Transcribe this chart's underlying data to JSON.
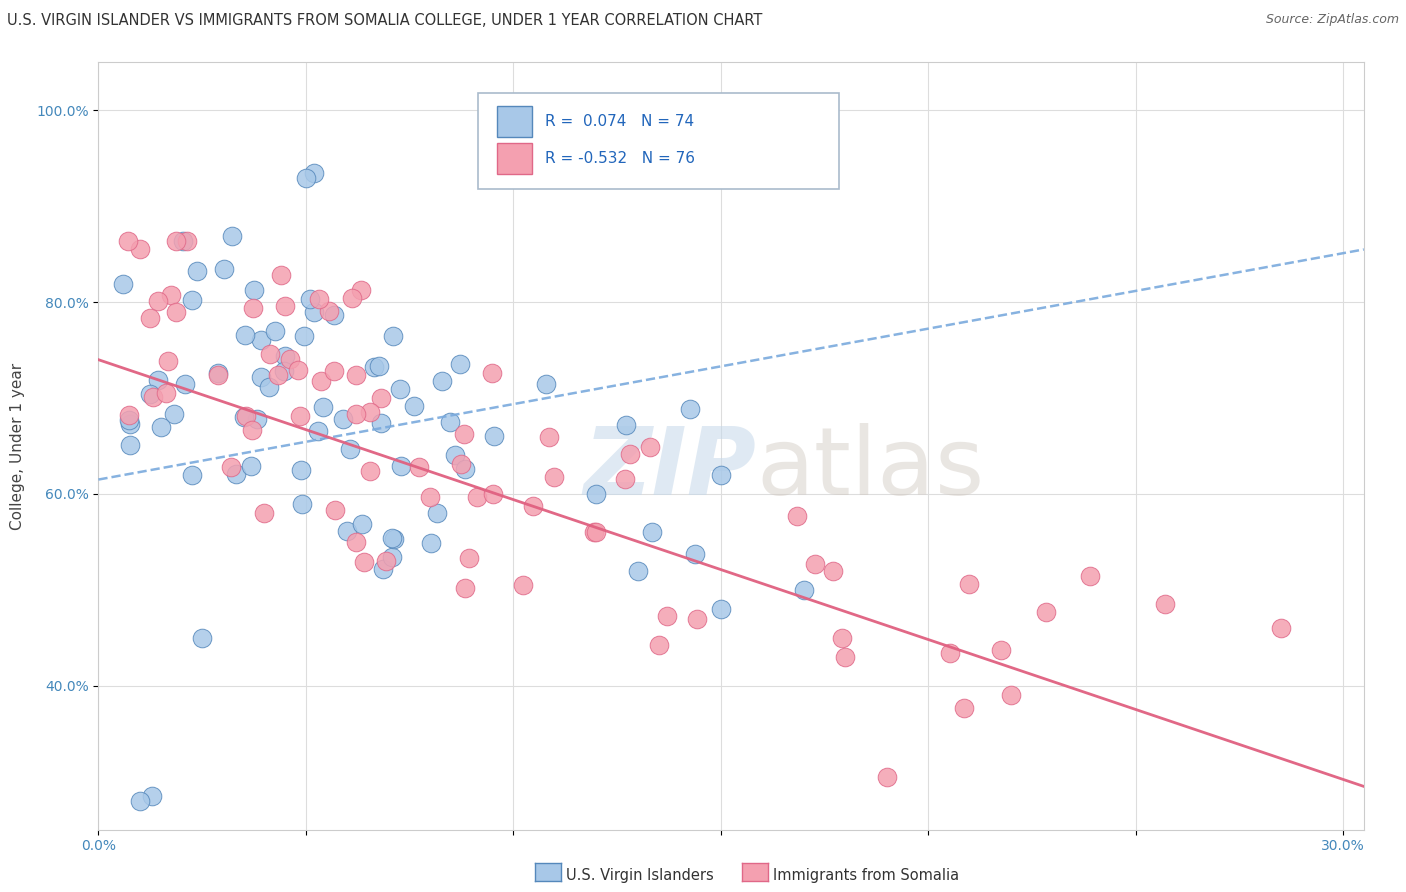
{
  "title": "U.S. VIRGIN ISLANDER VS IMMIGRANTS FROM SOMALIA COLLEGE, UNDER 1 YEAR CORRELATION CHART",
  "source": "Source: ZipAtlas.com",
  "ylabel": "College, Under 1 year",
  "xlim": [
    0.0,
    0.305
  ],
  "ylim": [
    0.25,
    1.05
  ],
  "xticks": [
    0.0,
    0.05,
    0.1,
    0.15,
    0.2,
    0.25,
    0.3
  ],
  "yticks": [
    0.4,
    0.6,
    0.8,
    1.0
  ],
  "ytick_labels": [
    "40.0%",
    "60.0%",
    "80.0%",
    "100.0%"
  ],
  "xtick_labels": [
    "0.0%",
    "",
    "",
    "",
    "",
    "",
    "30.0%"
  ],
  "color_blue": "#a8c8e8",
  "color_pink": "#f4a0b0",
  "color_edge_blue": "#5588bb",
  "color_edge_pink": "#e06888",
  "color_line_blue": "#7aaadd",
  "color_line_pink": "#e06080",
  "watermark_zip": "ZIP",
  "watermark_atlas": "atlas",
  "background_color": "#ffffff",
  "grid_color": "#dddddd",
  "title_fontsize": 10.5,
  "axis_label_fontsize": 11,
  "tick_fontsize": 10,
  "tick_color": "#4488bb",
  "blue_line_x0": 0.0,
  "blue_line_x1": 0.305,
  "blue_line_y0": 0.615,
  "blue_line_y1": 0.855,
  "pink_line_x0": 0.0,
  "pink_line_x1": 0.305,
  "pink_line_y0": 0.74,
  "pink_line_y1": 0.295
}
